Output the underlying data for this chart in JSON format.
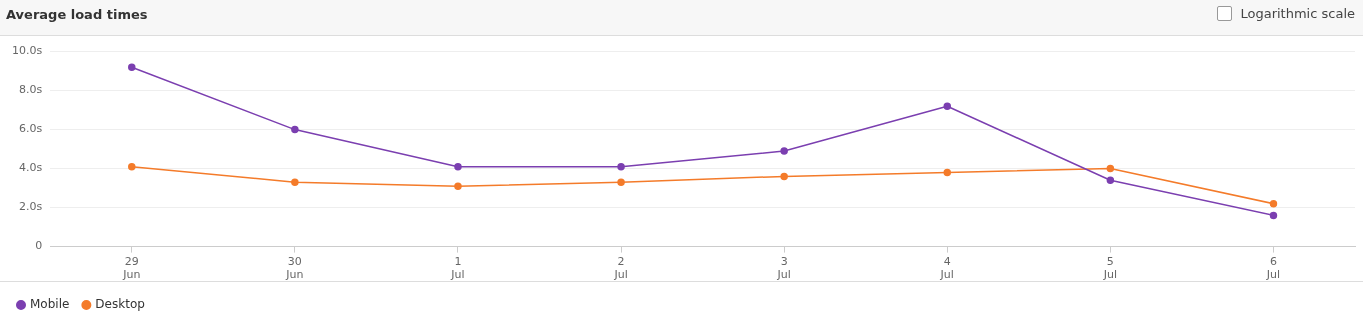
{
  "chart_data": {
    "type": "line",
    "title": "Average load times",
    "annotations": [
      "Logarithmic scale"
    ],
    "categories": [
      "29 Jun",
      "30 Jun",
      "1 Jul",
      "2 Jul",
      "3 Jul",
      "4 Jul",
      "5 Jul",
      "6 Jul"
    ],
    "series": [
      {
        "name": "Mobile",
        "color": "#7b3fb0",
        "values": [
          9.2,
          6.0,
          4.1,
          4.1,
          4.9,
          7.2,
          3.4,
          1.6
        ]
      },
      {
        "name": "Desktop",
        "color": "#f47b2a",
        "values": [
          4.1,
          3.3,
          3.1,
          3.3,
          3.6,
          3.8,
          4.0,
          2.2
        ]
      }
    ],
    "ylim": [
      0,
      10
    ],
    "yticks": [
      {
        "value": 0,
        "label": "0"
      },
      {
        "value": 2,
        "label": "2.0s"
      },
      {
        "value": 4,
        "label": "4.0s"
      },
      {
        "value": 6,
        "label": "6.0s"
      },
      {
        "value": 8,
        "label": "8.0s"
      },
      {
        "value": 10,
        "label": "10.0s"
      }
    ],
    "grid": "y",
    "legend": "bottom left",
    "marker": "circle",
    "line_style": "solid"
  }
}
